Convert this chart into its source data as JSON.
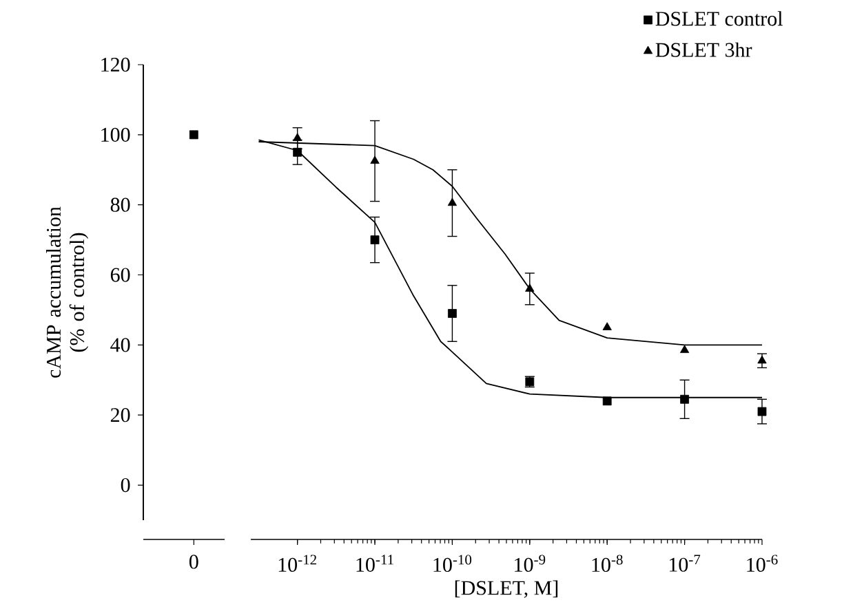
{
  "chart_data": [
    {
      "type": "scatter",
      "categories": [
        "0"
      ],
      "ylim": [
        -10,
        120
      ],
      "tick_labels": "x",
      "series": [
        {
          "color": "#000000",
          "marker": "square",
          "values": [
            100
          ]
        }
      ]
    },
    {
      "type": "scatter",
      "xlabel": "[DSLET, M]",
      "ylabel": "cAMP accumulation (% of control)",
      "log": "x",
      "xlim": [
        2.5e-13,
        1e-06
      ],
      "ylim": [
        -10,
        120
      ],
      "yticks": [
        0,
        20,
        40,
        60,
        80,
        100,
        120
      ],
      "legend": "top right",
      "xticks": [
        {
          "value": 1e-12,
          "label": "10$^{-12}$"
        },
        {
          "value": 1e-11,
          "label": "10$^{-11}$"
        },
        {
          "value": 1e-10,
          "label": "10$^{-10}$"
        },
        {
          "value": 1e-09,
          "label": "10$^{-9}$"
        },
        {
          "value": 1e-08,
          "label": "10$^{-8}$"
        },
        {
          "value": 1e-07,
          "label": "10$^{-7}$"
        },
        {
          "value": 1e-06,
          "label": "10$^{-6}$"
        }
      ],
      "x": [
        1e-12,
        1e-11,
        1e-10,
        1e-09,
        1e-08,
        1e-07,
        1e-06
      ],
      "series": [
        {
          "name": "DSLET control",
          "color": "#000000",
          "marker": "square",
          "values": [
            95,
            70,
            49,
            29.5,
            24,
            24.5,
            21
          ],
          "errors": [
            3.5,
            6.5,
            8,
            1.5,
            null,
            5.5,
            3.5
          ]
        },
        {
          "name": "DSLET 3hr",
          "color": "#000000",
          "marker": "triangle",
          "values": [
            99,
            92.5,
            80.5,
            56,
            45,
            38.5,
            35.5
          ],
          "errors": [
            3,
            11.5,
            9.5,
            4.5,
            null,
            null,
            2
          ]
        },
        {
          "type": "line",
          "color": "#000000",
          "line_style": "solid",
          "x": [
            3.162e-13,
            1e-12,
            3.162e-12,
            1e-11,
            3.162e-11,
            7.08e-11,
            1e-10,
            2.754e-10,
            1e-09,
            1e-08,
            1e-06
          ],
          "values": [
            98.5,
            95.5,
            85,
            75,
            54,
            41,
            38,
            29,
            26,
            25,
            25
          ]
        },
        {
          "type": "line",
          "color": "#000000",
          "line_style": "solid",
          "x": [
            3.162e-13,
            1e-11,
            3.162e-11,
            5.623e-11,
            1e-10,
            2.089e-10,
            4.786e-10,
            1e-09,
            2.399e-09,
            1e-08,
            1e-07,
            1e-06
          ],
          "values": [
            98,
            96.9,
            93,
            90,
            85.3,
            76,
            66,
            56,
            47,
            42,
            40,
            40
          ]
        }
      ]
    }
  ]
}
